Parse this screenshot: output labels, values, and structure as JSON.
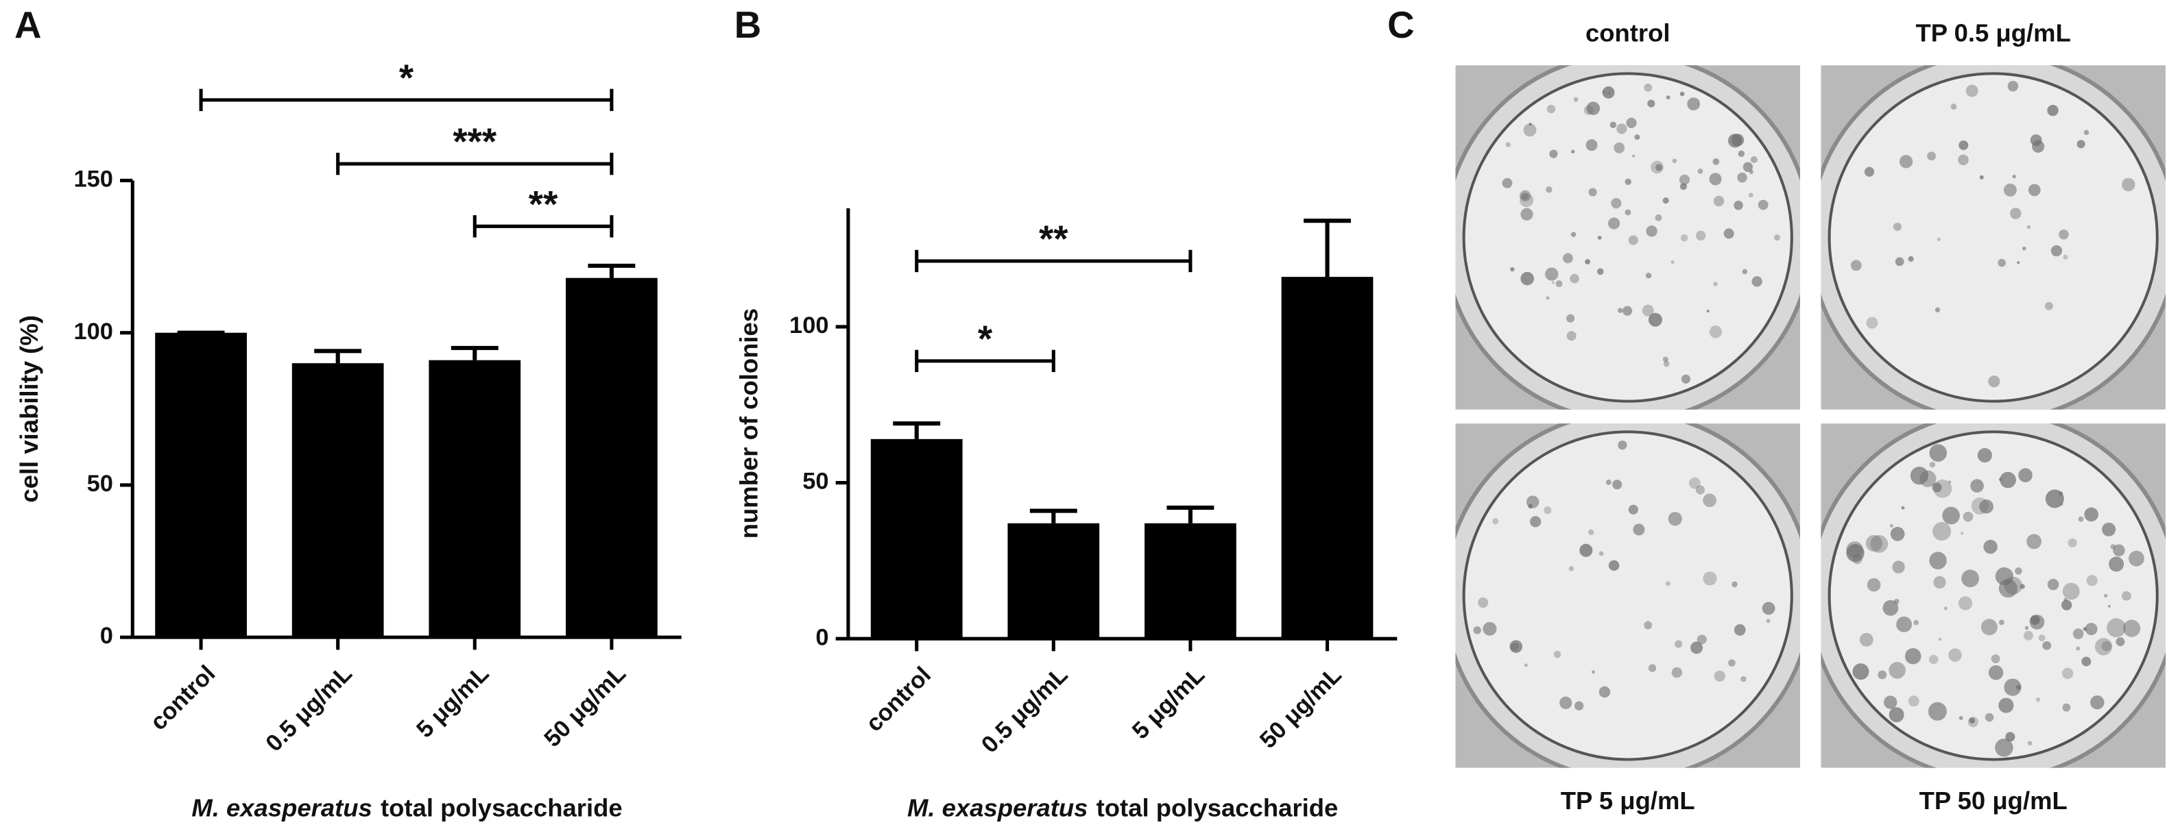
{
  "panel_labels": [
    "A",
    "B",
    "C"
  ],
  "chart_data": [
    {
      "type": "bar",
      "ylabel": "cell viability (%)",
      "xlabel": {
        "italic": "M. exasperatus",
        "text": "total polysaccharide"
      },
      "categories": [
        "control",
        "0.5 μg/mL",
        "5 μg/mL",
        "50 μg/mL"
      ],
      "values": [
        100,
        90,
        91,
        118
      ],
      "errors": [
        0,
        4,
        4,
        4
      ],
      "color": "#000000",
      "ylim": [
        0,
        150
      ],
      "yticks": [
        0,
        50,
        100,
        150
      ],
      "annotations": [
        {
          "label": "*",
          "from": "control",
          "to": "50 μg/mL"
        },
        {
          "label": "***",
          "from": "0.5 μg/mL",
          "to": "50 μg/mL"
        },
        {
          "label": "**",
          "from": "5 μg/mL",
          "to": "50 μg/mL"
        }
      ]
    },
    {
      "type": "bar",
      "ylabel": "number of colonies",
      "xlabel": {
        "italic": "M. exasperatus",
        "text": "total polysaccharide"
      },
      "categories": [
        "control",
        "0.5 μg/mL",
        "5 μg/mL",
        "50 μg/mL"
      ],
      "values": [
        64,
        37,
        37,
        116
      ],
      "errors": [
        5,
        4,
        5,
        18
      ],
      "color": "#000000",
      "ylim": [
        0,
        138
      ],
      "yticks": [
        0,
        50,
        100
      ],
      "annotations": [
        {
          "label": "**",
          "from": "control",
          "to": "5 μg/mL"
        },
        {
          "label": "*",
          "from": "control",
          "to": "0.5 μg/mL"
        }
      ]
    }
  ],
  "photos": {
    "labels": [
      "control",
      "TP 0.5 μg/mL",
      "TP 5 μg/mL",
      "TP 50 μg/mL"
    ]
  }
}
